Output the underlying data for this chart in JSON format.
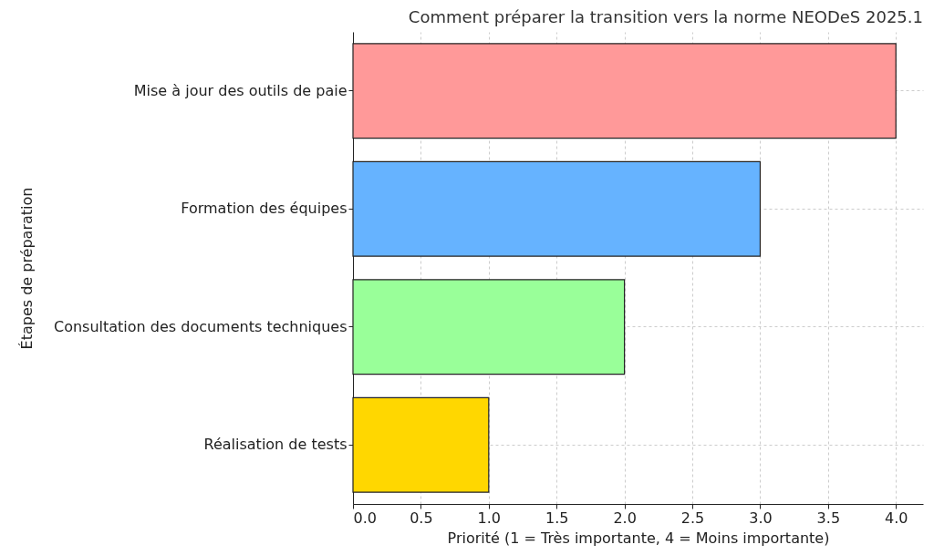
{
  "chart_data": {
    "type": "bar",
    "orientation": "horizontal",
    "title": "Comment préparer la transition vers la norme NEODeS 2025.1",
    "xlabel": "Priorité (1 = Très importante, 4 = Moins importante)",
    "ylabel": "Étapes de préparation",
    "categories": [
      "Mise à jour des outils de paie",
      "Formation des équipes",
      "Consultation des documents techniques",
      "Réalisation de tests"
    ],
    "values": [
      4,
      3,
      2,
      1
    ],
    "colors": [
      "#ff9999",
      "#66b3ff",
      "#99ff99",
      "#ffd700"
    ],
    "xlim": [
      0,
      4.2
    ],
    "xticks": [
      {
        "value": 0,
        "label": "0.0"
      },
      0.5,
      {
        "value": 1,
        "label": "1.0"
      },
      1.5,
      {
        "value": 2,
        "label": "2.0"
      },
      2.5,
      {
        "value": 3,
        "label": "3.0"
      },
      3.5,
      {
        "value": 4,
        "label": "4.0"
      }
    ],
    "grid": true
  }
}
